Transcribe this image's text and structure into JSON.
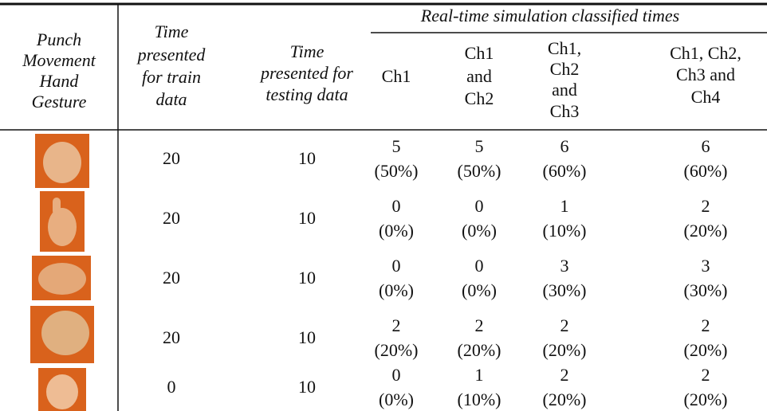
{
  "table": {
    "group_header": "Real-time simulation classified times",
    "headers": [
      [
        "Punch",
        "Movement",
        "Hand",
        "Gesture"
      ],
      [
        "Time",
        "presented",
        "for train",
        "data"
      ],
      [
        "Time",
        "presented for",
        "testing data"
      ],
      [
        "Ch1"
      ],
      [
        "Ch1",
        "and",
        "Ch2"
      ],
      [
        "Ch1,",
        "Ch2",
        "and",
        "Ch3"
      ],
      [
        "Ch1, Ch2,",
        "Ch3 and",
        "Ch4"
      ]
    ],
    "rows": [
      {
        "train": 20,
        "test": 10,
        "cells": [
          {
            "count": 5,
            "percent": "(50%)"
          },
          {
            "count": 5,
            "percent": "(50%)"
          },
          {
            "count": 6,
            "percent": "(60%)"
          },
          {
            "count": 6,
            "percent": "(60%)"
          }
        ]
      },
      {
        "train": 20,
        "test": 10,
        "cells": [
          {
            "count": 0,
            "percent": "(0%)"
          },
          {
            "count": 0,
            "percent": "(0%)"
          },
          {
            "count": 1,
            "percent": "(10%)"
          },
          {
            "count": 2,
            "percent": "(20%)"
          }
        ]
      },
      {
        "train": 20,
        "test": 10,
        "cells": [
          {
            "count": 0,
            "percent": "(0%)"
          },
          {
            "count": 0,
            "percent": "(0%)"
          },
          {
            "count": 3,
            "percent": "(30%)"
          },
          {
            "count": 3,
            "percent": "(30%)"
          }
        ]
      },
      {
        "train": 20,
        "test": 10,
        "cells": [
          {
            "count": 2,
            "percent": "(20%)"
          },
          {
            "count": 2,
            "percent": "(20%)"
          },
          {
            "count": 2,
            "percent": "(20%)"
          },
          {
            "count": 2,
            "percent": "(20%)"
          }
        ]
      },
      {
        "train": 0,
        "test": 10,
        "cells": [
          {
            "count": 0,
            "percent": "(0%)"
          },
          {
            "count": 1,
            "percent": "(10%)"
          },
          {
            "count": 2,
            "percent": "(20%)"
          },
          {
            "count": 2,
            "percent": "(20%)"
          }
        ]
      }
    ]
  }
}
